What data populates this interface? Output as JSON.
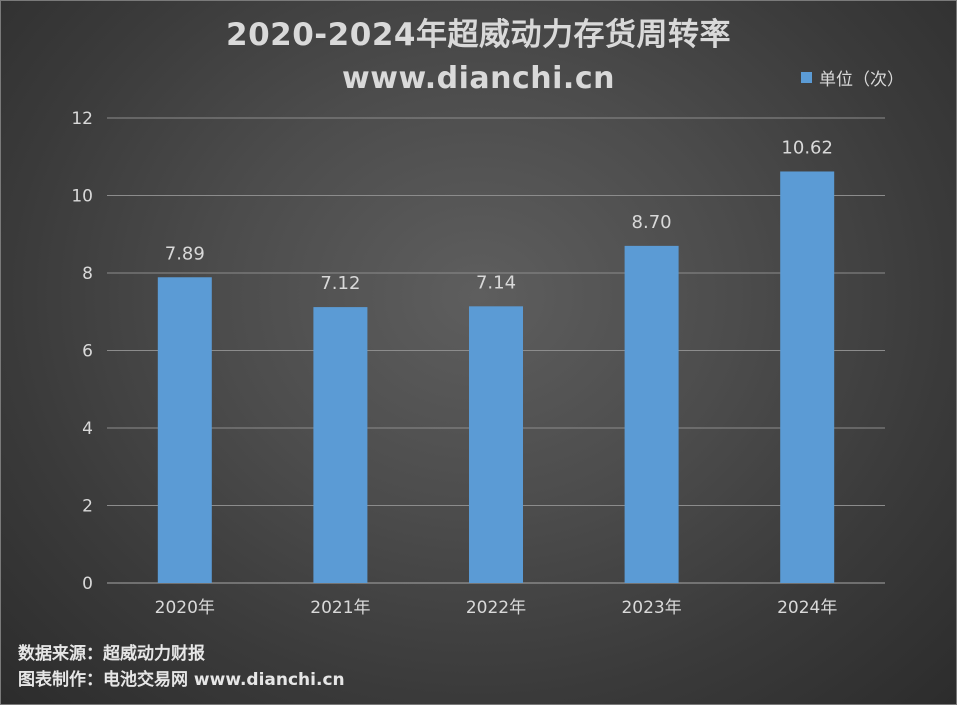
{
  "chart_data": {
    "type": "bar",
    "title": "2020-2024年超威动力存货周转率",
    "subtitle": "www.dianchi.cn",
    "categories": [
      "2020年",
      "2021年",
      "2022年",
      "2023年",
      "2024年"
    ],
    "series": [
      {
        "name": "单位（次）",
        "values": [
          7.89,
          7.12,
          7.14,
          8.7,
          10.62
        ],
        "labels": [
          "7.89",
          "7.12",
          "7.14",
          "8.70",
          "10.62"
        ],
        "color": "#5b9bd5"
      }
    ],
    "ylim": [
      0,
      12
    ],
    "yticks": [
      0,
      2,
      4,
      6,
      8,
      10,
      12
    ],
    "grid": true,
    "legend_position": "top-right"
  },
  "footer": {
    "source": "数据来源：超威动力财报",
    "maker": "图表制作：电池交易网 www.dianchi.cn"
  },
  "colors": {
    "text": "#d9d9d9",
    "grid": "#8c8c8c",
    "bar": "#5b9bd5"
  }
}
